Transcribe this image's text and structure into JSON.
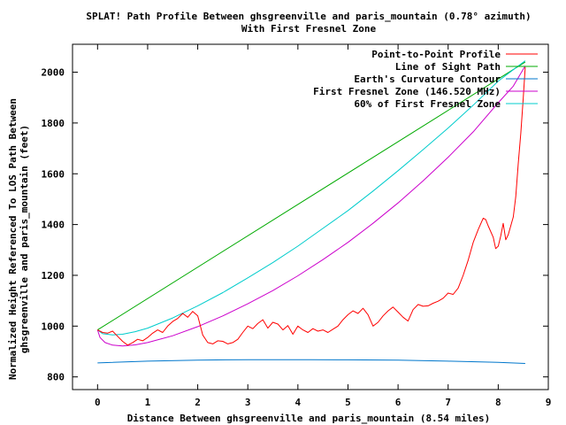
{
  "chart_data": {
    "type": "line",
    "title": "SPLAT! Path Profile Between ghsgreenville and paris_mountain (0.78° azimuth)",
    "subtitle": "With First Fresnel Zone",
    "xlabel": "Distance Between ghsgreenville and paris_mountain (8.54 miles)",
    "ylabel": [
      "Normalized Height Referenced To LOS Path Between",
      "ghsgreenville and paris_mountain (feet)"
    ],
    "xlim": [
      -0.5,
      9
    ],
    "ylim": [
      750,
      2110
    ],
    "x_ticks": [
      "0",
      "1",
      "2",
      "3",
      "4",
      "5",
      "6",
      "7",
      "8",
      "9"
    ],
    "y_ticks": [
      "800",
      "1000",
      "1200",
      "1400",
      "1600",
      "1800",
      "2000"
    ],
    "legend_position": "top-right",
    "grid": false,
    "series": [
      {
        "name": "Point-to-Point Profile",
        "color": "#ff0000",
        "points": [
          [
            0.0,
            985
          ],
          [
            0.1,
            975
          ],
          [
            0.2,
            972
          ],
          [
            0.3,
            980
          ],
          [
            0.4,
            960
          ],
          [
            0.5,
            940
          ],
          [
            0.6,
            925
          ],
          [
            0.7,
            935
          ],
          [
            0.8,
            948
          ],
          [
            0.9,
            942
          ],
          [
            1.0,
            955
          ],
          [
            1.1,
            972
          ],
          [
            1.2,
            985
          ],
          [
            1.3,
            975
          ],
          [
            1.4,
            1000
          ],
          [
            1.5,
            1018
          ],
          [
            1.6,
            1030
          ],
          [
            1.7,
            1050
          ],
          [
            1.8,
            1035
          ],
          [
            1.9,
            1058
          ],
          [
            2.0,
            1040
          ],
          [
            2.1,
            965
          ],
          [
            2.2,
            935
          ],
          [
            2.3,
            930
          ],
          [
            2.4,
            942
          ],
          [
            2.5,
            940
          ],
          [
            2.6,
            930
          ],
          [
            2.7,
            935
          ],
          [
            2.8,
            948
          ],
          [
            2.9,
            975
          ],
          [
            3.0,
            1000
          ],
          [
            3.1,
            990
          ],
          [
            3.2,
            1010
          ],
          [
            3.3,
            1025
          ],
          [
            3.4,
            992
          ],
          [
            3.5,
            1015
          ],
          [
            3.6,
            1008
          ],
          [
            3.7,
            985
          ],
          [
            3.8,
            1002
          ],
          [
            3.9,
            968
          ],
          [
            4.0,
            1000
          ],
          [
            4.1,
            985
          ],
          [
            4.2,
            975
          ],
          [
            4.3,
            990
          ],
          [
            4.4,
            980
          ],
          [
            4.5,
            985
          ],
          [
            4.6,
            975
          ],
          [
            4.7,
            988
          ],
          [
            4.8,
            1000
          ],
          [
            4.9,
            1025
          ],
          [
            5.0,
            1045
          ],
          [
            5.1,
            1060
          ],
          [
            5.2,
            1050
          ],
          [
            5.3,
            1070
          ],
          [
            5.4,
            1045
          ],
          [
            5.5,
            1000
          ],
          [
            5.6,
            1015
          ],
          [
            5.7,
            1040
          ],
          [
            5.8,
            1060
          ],
          [
            5.9,
            1075
          ],
          [
            6.0,
            1055
          ],
          [
            6.1,
            1035
          ],
          [
            6.2,
            1020
          ],
          [
            6.3,
            1065
          ],
          [
            6.4,
            1085
          ],
          [
            6.5,
            1078
          ],
          [
            6.6,
            1080
          ],
          [
            6.7,
            1090
          ],
          [
            6.8,
            1098
          ],
          [
            6.9,
            1110
          ],
          [
            7.0,
            1130
          ],
          [
            7.1,
            1125
          ],
          [
            7.2,
            1150
          ],
          [
            7.3,
            1200
          ],
          [
            7.4,
            1260
          ],
          [
            7.5,
            1330
          ],
          [
            7.6,
            1380
          ],
          [
            7.7,
            1425
          ],
          [
            7.75,
            1420
          ],
          [
            7.8,
            1395
          ],
          [
            7.9,
            1350
          ],
          [
            7.95,
            1305
          ],
          [
            8.0,
            1315
          ],
          [
            8.05,
            1355
          ],
          [
            8.1,
            1405
          ],
          [
            8.15,
            1340
          ],
          [
            8.2,
            1360
          ],
          [
            8.3,
            1430
          ],
          [
            8.35,
            1510
          ],
          [
            8.4,
            1640
          ],
          [
            8.45,
            1760
          ],
          [
            8.5,
            1900
          ],
          [
            8.54,
            2020
          ]
        ]
      },
      {
        "name": "Line of Sight Path",
        "color": "#00aa00",
        "points": [
          [
            0.0,
            985
          ],
          [
            8.54,
            2040
          ]
        ]
      },
      {
        "name": "Earth's Curvature Contour",
        "color": "#0077cc",
        "points": [
          [
            0.0,
            855
          ],
          [
            1.0,
            862
          ],
          [
            2.0,
            866
          ],
          [
            3.0,
            868
          ],
          [
            4.0,
            868
          ],
          [
            4.27,
            868
          ],
          [
            5.0,
            867
          ],
          [
            6.0,
            866
          ],
          [
            7.0,
            862
          ],
          [
            8.0,
            857
          ],
          [
            8.54,
            853
          ]
        ]
      },
      {
        "name": "First Fresnel Zone (146.520 MHz)",
        "color": "#cc00cc",
        "points": [
          [
            0.0,
            985
          ],
          [
            0.05,
            955
          ],
          [
            0.15,
            935
          ],
          [
            0.3,
            925
          ],
          [
            0.5,
            922
          ],
          [
            0.75,
            926
          ],
          [
            1.0,
            935
          ],
          [
            1.5,
            962
          ],
          [
            2.0,
            998
          ],
          [
            2.5,
            1040
          ],
          [
            3.0,
            1088
          ],
          [
            3.5,
            1140
          ],
          [
            4.0,
            1198
          ],
          [
            4.5,
            1262
          ],
          [
            5.0,
            1330
          ],
          [
            5.5,
            1405
          ],
          [
            6.0,
            1485
          ],
          [
            6.5,
            1572
          ],
          [
            7.0,
            1665
          ],
          [
            7.5,
            1765
          ],
          [
            8.0,
            1880
          ],
          [
            8.3,
            1945
          ],
          [
            8.54,
            2025
          ]
        ]
      },
      {
        "name": "60% of First Fresnel Zone",
        "color": "#00cccc",
        "points": [
          [
            0.0,
            985
          ],
          [
            0.1,
            970
          ],
          [
            0.3,
            965
          ],
          [
            0.5,
            968
          ],
          [
            0.75,
            978
          ],
          [
            1.0,
            992
          ],
          [
            1.5,
            1032
          ],
          [
            2.0,
            1080
          ],
          [
            2.5,
            1132
          ],
          [
            3.0,
            1190
          ],
          [
            3.5,
            1250
          ],
          [
            4.0,
            1315
          ],
          [
            4.5,
            1385
          ],
          [
            5.0,
            1455
          ],
          [
            5.5,
            1532
          ],
          [
            6.0,
            1612
          ],
          [
            6.5,
            1695
          ],
          [
            7.0,
            1780
          ],
          [
            7.5,
            1870
          ],
          [
            8.0,
            1965
          ],
          [
            8.3,
            2010
          ],
          [
            8.54,
            2045
          ]
        ]
      }
    ]
  }
}
